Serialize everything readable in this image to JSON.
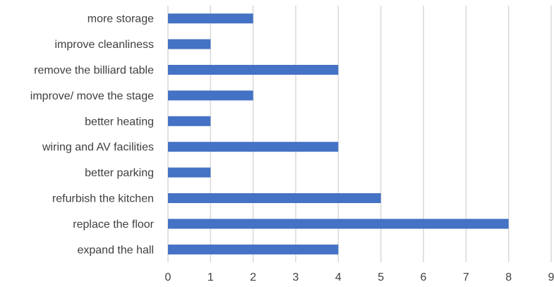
{
  "chart_data": {
    "type": "bar",
    "orientation": "horizontal",
    "categories": [
      "more storage",
      "improve cleanliness",
      "remove the billiard table",
      "improve/ move the stage",
      "better heating",
      "wiring and AV facilities",
      "better parking",
      "refurbish the kitchen",
      "replace the floor",
      "expand the hall"
    ],
    "values": [
      2,
      1,
      4,
      2,
      1,
      4,
      1,
      5,
      8,
      4
    ],
    "xlim": [
      0,
      9
    ],
    "xticks": [
      "0",
      "1",
      "2",
      "3",
      "4",
      "5",
      "6",
      "7",
      "8",
      "9"
    ],
    "grid": "vertical",
    "bar_color": "#4472c4",
    "title": "",
    "xlabel": "",
    "ylabel": ""
  }
}
